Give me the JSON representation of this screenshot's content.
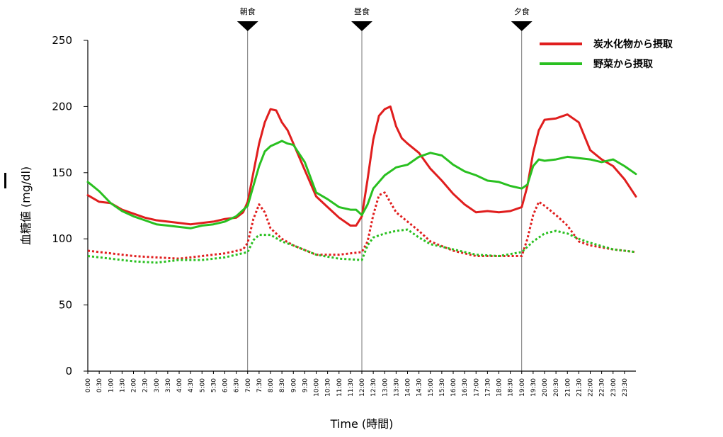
{
  "chart_data": {
    "type": "line",
    "xlabel": "Time (時間)",
    "ylabel": "血糖値 (mg/dl)",
    "ylim": [
      0,
      250
    ],
    "yticks": [
      0,
      50,
      100,
      150,
      200,
      250
    ],
    "x_tick_labels": [
      "0:00",
      "0:30",
      "1:00",
      "1:30",
      "2:00",
      "2:30",
      "3:00",
      "3:30",
      "4:00",
      "4:30",
      "5:00",
      "5:30",
      "6:00",
      "6:30",
      "7:00",
      "7:30",
      "8:00",
      "8:30",
      "9:00",
      "9:30",
      "10:00",
      "10:30",
      "11:00",
      "11:30",
      "12:00",
      "12:30",
      "13:00",
      "13:30",
      "14:00",
      "14:30",
      "15:00",
      "15:30",
      "16:00",
      "16:30",
      "17:00",
      "17:30",
      "18:00",
      "18:30",
      "19:00",
      "19:30",
      "20:00",
      "20:30",
      "21:00",
      "21:30",
      "22:00",
      "22:30",
      "23:00",
      "23:30"
    ],
    "x_unit": "hours",
    "xlim": [
      0,
      24
    ],
    "grid": false,
    "legend_position": "top-right",
    "meals": [
      {
        "label": "朝食",
        "time": 7.0
      },
      {
        "label": "昼食",
        "time": 12.0
      },
      {
        "label": "夕食",
        "time": 19.0
      }
    ],
    "series": [
      {
        "name": "炭水化物から摂取",
        "color": "#e01e1e",
        "style": "solid",
        "in_legend": true,
        "x": [
          0,
          0.5,
          1,
          1.5,
          2,
          2.5,
          3,
          3.5,
          4,
          4.5,
          5,
          5.5,
          6,
          6.5,
          6.8,
          7,
          7.25,
          7.5,
          7.75,
          8,
          8.25,
          8.5,
          8.75,
          9,
          9.5,
          10,
          10.5,
          11,
          11.5,
          11.75,
          12,
          12.25,
          12.5,
          12.75,
          13,
          13.25,
          13.5,
          13.75,
          14,
          14.5,
          15,
          15.5,
          16,
          16.5,
          17,
          17.5,
          18,
          18.5,
          19,
          19.25,
          19.5,
          19.75,
          20,
          20.5,
          21,
          21.5,
          22,
          22.5,
          23,
          23.5,
          24
        ],
        "values": [
          133,
          128,
          127,
          122,
          119,
          116,
          114,
          113,
          112,
          111,
          112,
          113,
          115,
          116,
          120,
          128,
          150,
          172,
          188,
          198,
          197,
          188,
          182,
          172,
          152,
          132,
          124,
          116,
          110,
          110,
          117,
          145,
          175,
          193,
          198,
          200,
          185,
          176,
          172,
          165,
          153,
          144,
          134,
          126,
          120,
          121,
          120,
          121,
          124,
          140,
          165,
          182,
          190,
          191,
          194,
          188,
          167,
          160,
          155,
          145,
          132
        ]
      },
      {
        "name": "野菜から摂取",
        "color": "#29c020",
        "style": "solid",
        "in_legend": true,
        "x": [
          0,
          0.5,
          1,
          1.5,
          2,
          2.5,
          3,
          3.5,
          4,
          4.5,
          5,
          5.5,
          6,
          6.5,
          7,
          7.25,
          7.5,
          7.75,
          8,
          8.25,
          8.5,
          8.75,
          9,
          9.5,
          10,
          10.5,
          11,
          11.5,
          11.75,
          12,
          12.25,
          12.5,
          13,
          13.5,
          14,
          14.5,
          15,
          15.5,
          16,
          16.5,
          17,
          17.5,
          18,
          18.5,
          19,
          19.25,
          19.5,
          19.75,
          20,
          20.5,
          21,
          21.5,
          22,
          22.5,
          23,
          23.5,
          24
        ],
        "values": [
          143,
          136,
          127,
          121,
          117,
          114,
          111,
          110,
          109,
          108,
          110,
          111,
          113,
          117,
          125,
          140,
          155,
          166,
          170,
          172,
          174,
          172,
          171,
          158,
          135,
          130,
          124,
          122,
          122,
          118,
          126,
          138,
          148,
          154,
          156,
          162,
          165,
          163,
          156,
          151,
          148,
          144,
          143,
          140,
          138,
          141,
          155,
          160,
          159,
          160,
          162,
          161,
          160,
          158,
          160,
          155,
          149
        ]
      },
      {
        "name": "",
        "color": "#e01e1e",
        "style": "dotted",
        "in_legend": false,
        "x": [
          0,
          1,
          2,
          3,
          4,
          5,
          6,
          6.8,
          7,
          7.25,
          7.5,
          7.75,
          8,
          8.5,
          9,
          10,
          11,
          11.5,
          12,
          12.25,
          12.5,
          12.75,
          13,
          13.5,
          14,
          14.5,
          15,
          16,
          17,
          18,
          19,
          19.25,
          19.5,
          19.75,
          20,
          20.5,
          21,
          21.5,
          22,
          23,
          24
        ],
        "values": [
          91,
          89,
          87,
          86,
          85,
          87,
          89,
          92,
          97,
          115,
          126,
          120,
          108,
          100,
          95,
          88,
          88,
          89,
          90,
          98,
          118,
          133,
          135,
          120,
          113,
          106,
          98,
          91,
          87,
          87,
          87,
          100,
          118,
          128,
          125,
          118,
          110,
          98,
          95,
          92,
          90
        ]
      },
      {
        "name": "",
        "color": "#29c020",
        "style": "dotted",
        "in_legend": false,
        "x": [
          0,
          1,
          2,
          3,
          4,
          5,
          6,
          7,
          7.25,
          7.5,
          8,
          8.5,
          9,
          10,
          11,
          12,
          12.25,
          12.5,
          13,
          13.5,
          14,
          14.5,
          15,
          16,
          17,
          18,
          19,
          19.5,
          20,
          20.5,
          21,
          21.5,
          22,
          23,
          24
        ],
        "values": [
          87,
          85,
          83,
          82,
          84,
          84,
          86,
          90,
          99,
          103,
          103,
          98,
          95,
          88,
          85,
          84,
          95,
          101,
          104,
          106,
          107,
          101,
          96,
          92,
          88,
          87,
          90,
          98,
          104,
          106,
          104,
          100,
          97,
          92,
          90
        ]
      }
    ]
  }
}
